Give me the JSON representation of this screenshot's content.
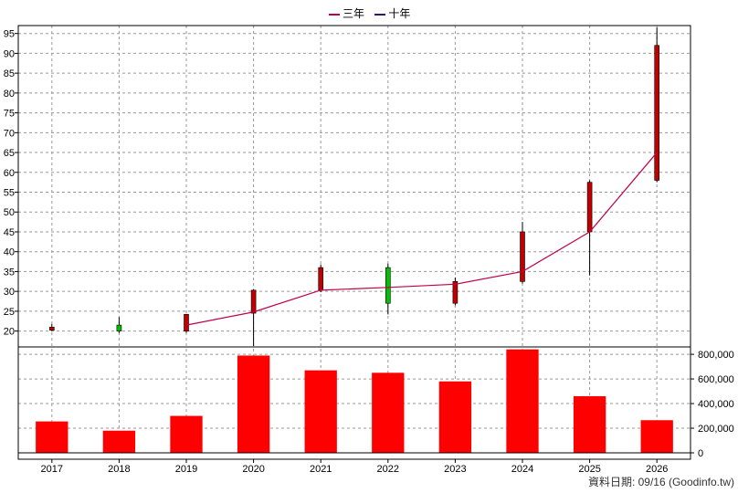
{
  "legend": {
    "three_year": "三年",
    "ten_year": "十年"
  },
  "source_note": "資料日期: 09/16  (Goodinfo.tw)",
  "colors": {
    "up": "#c00000",
    "down": "#00c000",
    "volume": "#ff0000",
    "ma3": "#c0004a",
    "ma10": "#3a1070",
    "grid": "#999999"
  },
  "chart_data": {
    "type": "candlestick+bar",
    "categories": [
      "2017",
      "2018",
      "2019",
      "2020",
      "2021",
      "2022",
      "2023",
      "2024",
      "2025",
      "2026"
    ],
    "price": {
      "ylim": [
        16,
        97
      ],
      "ticks": [
        20,
        25,
        30,
        35,
        40,
        45,
        50,
        55,
        60,
        65,
        70,
        75,
        80,
        85,
        90,
        95
      ],
      "ohlc": [
        {
          "open": 20.2,
          "high": 21.8,
          "low": 20.0,
          "close": 21.0
        },
        {
          "open": 21.5,
          "high": 23.5,
          "low": 19.5,
          "close": 20.0
        },
        {
          "open": 20.0,
          "high": 24.3,
          "low": 19.5,
          "close": 24.2
        },
        {
          "open": 24.5,
          "high": 30.5,
          "low": 16.2,
          "close": 30.3
        },
        {
          "open": 30.3,
          "high": 36.8,
          "low": 29.8,
          "close": 36.0
        },
        {
          "open": 36.0,
          "high": 37.0,
          "low": 24.2,
          "close": 27.0
        },
        {
          "open": 27.0,
          "high": 33.5,
          "low": 26.5,
          "close": 32.5
        },
        {
          "open": 32.5,
          "high": 47.5,
          "low": 32.0,
          "close": 45.0
        },
        {
          "open": 45.0,
          "high": 58.0,
          "low": 34.0,
          "close": 57.5
        },
        {
          "open": 58.0,
          "high": 96.5,
          "low": 57.5,
          "close": 92.0
        }
      ],
      "ma3": [
        null,
        null,
        21.5,
        24.8,
        30.3,
        31.0,
        31.8,
        35.0,
        45.0,
        65.0
      ]
    },
    "volume": {
      "ylim": [
        0,
        860000
      ],
      "ticks": [
        0,
        200000,
        400000,
        600000,
        800000
      ],
      "tick_labels": [
        "0",
        "200,000",
        "400,000",
        "600,000",
        "800,000"
      ],
      "values": [
        255000,
        180000,
        300000,
        790000,
        670000,
        650000,
        580000,
        840000,
        460000,
        265000
      ]
    }
  }
}
